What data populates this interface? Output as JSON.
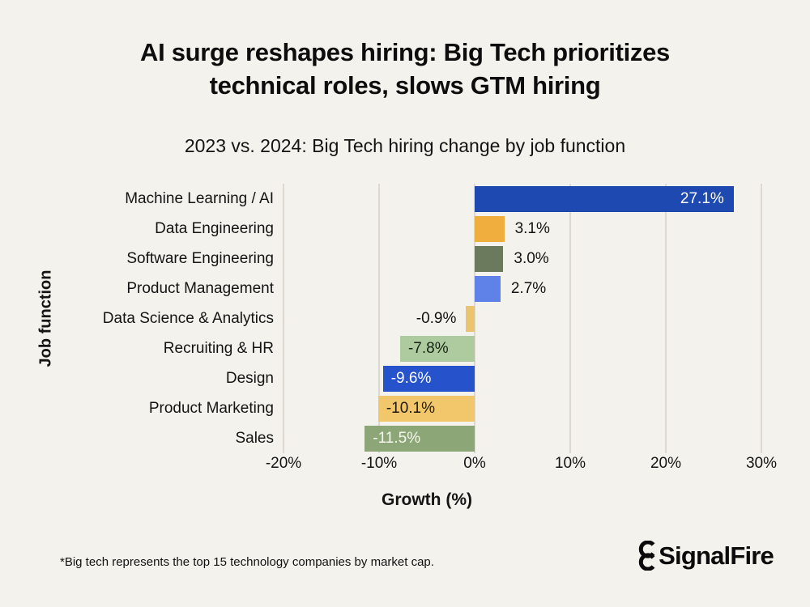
{
  "page": {
    "background": "#f4f2ec"
  },
  "header": {
    "title_lines": [
      "AI surge reshapes hiring: Big Tech prioritizes",
      "technical roles, slows GTM hiring"
    ],
    "subtitle": "2023 vs. 2024: Big Tech hiring change by job function"
  },
  "footer": {
    "footnote": "*Big tech represents the top 15 technology companies by market cap.",
    "logo_text": "SignalFire",
    "logo_icon": "signalfire-mark-icon"
  },
  "chart_data": {
    "type": "bar",
    "orientation": "horizontal",
    "title": "2023 vs. 2024: Big Tech hiring change by job function",
    "xlabel": "Growth (%)",
    "ylabel": "Job function",
    "xlim": [
      -20,
      30
    ],
    "grid": true,
    "x_ticks": [
      {
        "value": -20,
        "label": "-20%"
      },
      {
        "value": -10,
        "label": "-10%"
      },
      {
        "value": 0,
        "label": "0%"
      },
      {
        "value": 10,
        "label": "10%"
      },
      {
        "value": 20,
        "label": "20%"
      },
      {
        "value": 30,
        "label": "30%"
      }
    ],
    "categories": [
      "Machine Learning / AI",
      "Data Engineering",
      "Software Engineering",
      "Product Management",
      "Data Science & Analytics",
      "Recruiting & HR",
      "Design",
      "Product Marketing",
      "Sales"
    ],
    "values": [
      27.1,
      3.1,
      3.0,
      2.7,
      -0.9,
      -7.8,
      -9.6,
      -10.1,
      -11.5
    ],
    "bars": [
      {
        "category": "Machine Learning / AI",
        "value": 27.1,
        "label": "27.1%",
        "color": "#1d49b0",
        "label_pos": "inside-right",
        "label_color": "#ffffff"
      },
      {
        "category": "Data Engineering",
        "value": 3.1,
        "label": "3.1%",
        "color": "#efae3e",
        "label_pos": "outside-right",
        "label_color": "#131313"
      },
      {
        "category": "Software Engineering",
        "value": 3.0,
        "label": "3.0%",
        "color": "#6b7a5c",
        "label_pos": "outside-right",
        "label_color": "#131313"
      },
      {
        "category": "Product Management",
        "value": 2.7,
        "label": "2.7%",
        "color": "#5f82e8",
        "label_pos": "outside-right",
        "label_color": "#131313"
      },
      {
        "category": "Data Science & Analytics",
        "value": -0.9,
        "label": "-0.9%",
        "color": "#ecc36e",
        "label_pos": "outside-left",
        "label_color": "#131313"
      },
      {
        "category": "Recruiting & HR",
        "value": -7.8,
        "label": "-7.8%",
        "color": "#aecba0",
        "label_pos": "inside-left",
        "label_color": "#162312"
      },
      {
        "category": "Design",
        "value": -9.6,
        "label": "-9.6%",
        "color": "#2652cc",
        "label_pos": "inside-left",
        "label_color": "#ffffff"
      },
      {
        "category": "Product Marketing",
        "value": -10.1,
        "label": "-10.1%",
        "color": "#f2c76c",
        "label_pos": "inside-left",
        "label_color": "#221a08"
      },
      {
        "category": "Sales",
        "value": -11.5,
        "label": "-11.5%",
        "color": "#8ca678",
        "label_pos": "inside-left",
        "label_color": "#f6f5ef"
      }
    ],
    "gridline_color": "#ddd9d1"
  }
}
